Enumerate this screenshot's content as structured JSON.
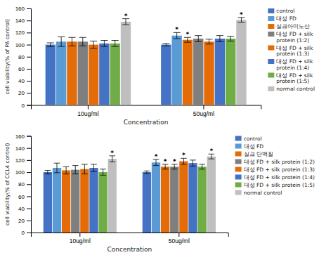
{
  "chart_data": [
    {
      "type": "bar",
      "xlabel": "Concentration",
      "ylabel": "cell viability(% of PA control)",
      "categories": [
        "10ug/ml",
        "50ug/ml"
      ],
      "series": [
        {
          "name": "control",
          "color": "#4472c4",
          "values": [
            100,
            100
          ],
          "errors": [
            3,
            2
          ],
          "significance": [
            null,
            null
          ]
        },
        {
          "name": "대성 FD",
          "color": "#5b9bd5",
          "values": [
            105,
            115
          ],
          "errors": [
            8,
            5
          ],
          "significance": [
            null,
            "*"
          ]
        },
        {
          "name": "실크아미노산",
          "color": "#e36c09",
          "values": [
            105,
            108
          ],
          "errors": [
            7,
            4
          ],
          "significance": [
            null,
            "*"
          ]
        },
        {
          "name": "대성 FD + silk\nprotein (1:2)",
          "color": "#7f7f7f",
          "values": [
            105,
            110
          ],
          "errors": [
            7,
            5
          ],
          "significance": [
            null,
            null
          ]
        },
        {
          "name": "대성 FD + silk\nprotein (1:3)",
          "color": "#e36c09",
          "values": [
            100,
            105
          ],
          "errors": [
            6,
            4
          ],
          "significance": [
            null,
            null
          ]
        },
        {
          "name": "대성 FD + silk\nprotein (1:4)",
          "color": "#4472c4",
          "values": [
            102,
            110
          ],
          "errors": [
            5,
            5
          ],
          "significance": [
            null,
            null
          ]
        },
        {
          "name": "대성 FD + silk\nprotein (1:5)",
          "color": "#70ad47",
          "values": [
            102,
            110
          ],
          "errors": [
            5,
            4
          ],
          "significance": [
            null,
            null
          ]
        },
        {
          "name": "normal control",
          "color": "#bfbfbf",
          "values": [
            138,
            141
          ],
          "errors": [
            5,
            4
          ],
          "significance": [
            "*",
            "*"
          ]
        }
      ],
      "ylim": [
        0,
        160
      ],
      "yticks": [
        0,
        20,
        40,
        60,
        80,
        100,
        120,
        140,
        160
      ],
      "legend": "right"
    },
    {
      "type": "bar",
      "xlabel": "Concentration",
      "ylabel": "cell viability(% of CCL4 control)",
      "categories": [
        "10ug/ml",
        "50ug/ml"
      ],
      "series": [
        {
          "name": "control",
          "color": "#4472c4",
          "values": [
            100,
            100
          ],
          "errors": [
            3,
            2
          ],
          "significance": [
            null,
            null
          ]
        },
        {
          "name": "대성 FD",
          "color": "#5b9bd5",
          "values": [
            107,
            116
          ],
          "errors": [
            8,
            5
          ],
          "significance": [
            null,
            "*"
          ]
        },
        {
          "name": "실크 단백질",
          "color": "#e36c09",
          "values": [
            103,
            109
          ],
          "errors": [
            6,
            4
          ],
          "significance": [
            null,
            "*"
          ]
        },
        {
          "name": "대성 FD + silk protein (1:2)",
          "color": "#7f7f7f",
          "values": [
            104,
            109
          ],
          "errors": [
            7,
            4
          ],
          "significance": [
            null,
            "*"
          ]
        },
        {
          "name": "대성 FD + silk protein (1:3)",
          "color": "#e36c09",
          "values": [
            105,
            118
          ],
          "errors": [
            8,
            5
          ],
          "significance": [
            null,
            "*"
          ]
        },
        {
          "name": "대성 FD + silk protein (1:4)",
          "color": "#4472c4",
          "values": [
            107,
            115
          ],
          "errors": [
            6,
            5
          ],
          "significance": [
            null,
            null
          ]
        },
        {
          "name": "대성 FD + silk protein (1:5)",
          "color": "#70ad47",
          "values": [
            100,
            109
          ],
          "errors": [
            5,
            4
          ],
          "significance": [
            null,
            null
          ]
        },
        {
          "name": "normal control",
          "color": "#bfbfbf",
          "values": [
            122,
            126
          ],
          "errors": [
            5,
            4
          ],
          "significance": [
            "*",
            "*"
          ]
        }
      ],
      "ylim": [
        0,
        160
      ],
      "yticks": [
        0,
        20,
        40,
        60,
        80,
        100,
        120,
        140,
        160
      ],
      "legend": "right"
    }
  ]
}
